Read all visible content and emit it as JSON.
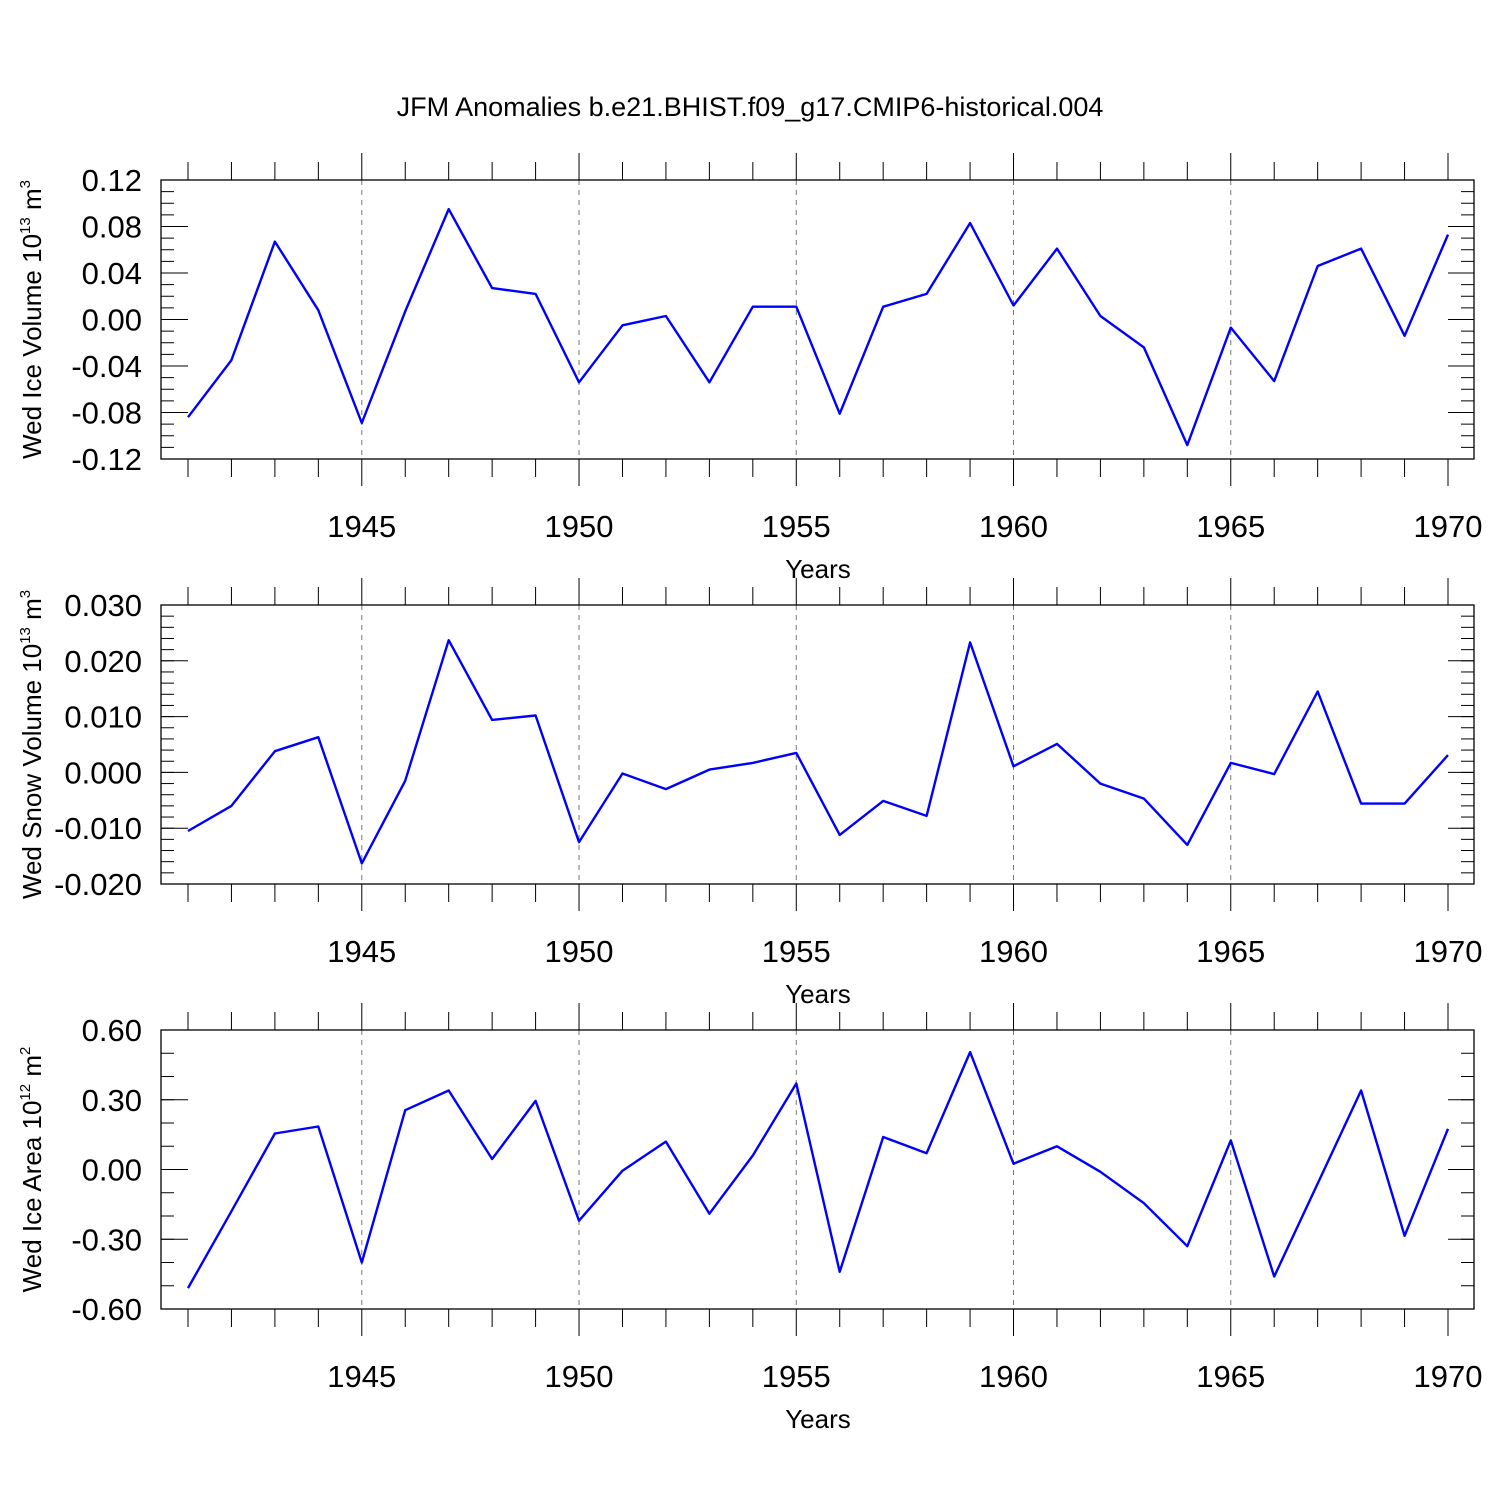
{
  "title": "JFM Anomalies b.e21.BHIST.f09_g17.CMIP6-historical.004",
  "colors": {
    "line": "#0000ff",
    "axis": "#000000",
    "grid": "#777777"
  },
  "chart_data": [
    {
      "type": "line",
      "ylabel": {
        "main": "Wed Ice Volume 10",
        "exp": "13",
        "unit": " m",
        "unit_exp": "3"
      },
      "xlabel": "Years",
      "xlim": [
        1941,
        1970
      ],
      "ylim": [
        -0.12,
        0.12
      ],
      "yticks": [
        -0.12,
        -0.08,
        -0.04,
        0.0,
        0.04,
        0.08,
        0.12
      ],
      "yticklabels": [
        "-0.12",
        "-0.08",
        "-0.04",
        "0.00",
        "0.04",
        "0.08",
        "0.12"
      ],
      "yminor": 0.01,
      "xticks": [
        1945,
        1950,
        1955,
        1960,
        1965,
        1970
      ],
      "xticklabels": [
        "1945",
        "1950",
        "1955",
        "1960",
        "1965",
        "1970"
      ],
      "x": [
        1941,
        1942,
        1943,
        1944,
        1945,
        1946,
        1947,
        1948,
        1949,
        1950,
        1951,
        1952,
        1953,
        1954,
        1955,
        1956,
        1957,
        1958,
        1959,
        1960,
        1961,
        1962,
        1963,
        1964,
        1965,
        1966,
        1967,
        1968,
        1969,
        1970
      ],
      "series": [
        {
          "name": "Wed Ice Volume",
          "values": [
            -0.084,
            -0.035,
            0.067,
            0.008,
            -0.089,
            0.007,
            0.095,
            0.027,
            0.022,
            -0.054,
            -0.005,
            0.003,
            -0.054,
            0.011,
            0.011,
            -0.081,
            0.011,
            0.022,
            0.083,
            0.012,
            0.061,
            0.003,
            -0.024,
            -0.108,
            -0.007,
            -0.053,
            0.046,
            0.061,
            -0.014,
            0.073
          ]
        }
      ]
    },
    {
      "type": "line",
      "ylabel": {
        "main": "Wed Snow Volume 10",
        "exp": "13",
        "unit": " m",
        "unit_exp": "3"
      },
      "xlabel": "Years",
      "xlim": [
        1941,
        1970
      ],
      "ylim": [
        -0.02,
        0.03
      ],
      "yticks": [
        -0.02,
        -0.01,
        0.0,
        0.01,
        0.02,
        0.03
      ],
      "yticklabels": [
        "-0.020",
        "-0.010",
        "0.000",
        "0.010",
        "0.020",
        "0.030"
      ],
      "yminor": 0.002,
      "xticks": [
        1945,
        1950,
        1955,
        1960,
        1965,
        1970
      ],
      "xticklabels": [
        "1945",
        "1950",
        "1955",
        "1960",
        "1965",
        "1970"
      ],
      "x": [
        1941,
        1942,
        1943,
        1944,
        1945,
        1946,
        1947,
        1948,
        1949,
        1950,
        1951,
        1952,
        1953,
        1954,
        1955,
        1956,
        1957,
        1958,
        1959,
        1960,
        1961,
        1962,
        1963,
        1964,
        1965,
        1966,
        1967,
        1968,
        1969,
        1970
      ],
      "series": [
        {
          "name": "Wed Snow Volume",
          "values": [
            -0.0105,
            -0.006,
            0.0038,
            0.0063,
            -0.0163,
            -0.0015,
            0.0237,
            0.0094,
            0.0102,
            -0.0125,
            -0.0002,
            -0.003,
            0.0005,
            0.0017,
            0.0035,
            -0.0112,
            -0.0051,
            -0.0078,
            0.0233,
            0.0011,
            0.0051,
            -0.002,
            -0.0047,
            -0.013,
            0.0017,
            -0.0003,
            0.0145,
            -0.0056,
            -0.0056,
            0.0031
          ]
        }
      ]
    },
    {
      "type": "line",
      "ylabel": {
        "main": "Wed Ice Area 10",
        "exp": "12",
        "unit": " m",
        "unit_exp": "2"
      },
      "xlabel": "Years",
      "xlim": [
        1941,
        1970
      ],
      "ylim": [
        -0.6,
        0.6
      ],
      "yticks": [
        -0.6,
        -0.3,
        0.0,
        0.3,
        0.6
      ],
      "yticklabels": [
        "-0.60",
        "-0.30",
        "0.00",
        "0.30",
        "0.60"
      ],
      "yminor": 0.1,
      "xticks": [
        1945,
        1950,
        1955,
        1960,
        1965,
        1970
      ],
      "xticklabels": [
        "1945",
        "1950",
        "1955",
        "1960",
        "1965",
        "1970"
      ],
      "x": [
        1941,
        1942,
        1943,
        1944,
        1945,
        1946,
        1947,
        1948,
        1949,
        1950,
        1951,
        1952,
        1953,
        1954,
        1955,
        1956,
        1957,
        1958,
        1959,
        1960,
        1961,
        1962,
        1963,
        1964,
        1965,
        1966,
        1967,
        1968,
        1969,
        1970
      ],
      "series": [
        {
          "name": "Wed Ice Area",
          "values": [
            -0.51,
            -0.18,
            0.155,
            0.185,
            -0.4,
            0.255,
            0.34,
            0.045,
            0.295,
            -0.22,
            -0.005,
            0.12,
            -0.19,
            0.06,
            0.37,
            -0.44,
            0.14,
            0.07,
            0.505,
            0.025,
            0.1,
            -0.01,
            -0.145,
            -0.33,
            0.125,
            -0.46,
            -0.06,
            0.34,
            -0.285,
            0.175
          ]
        }
      ]
    }
  ]
}
